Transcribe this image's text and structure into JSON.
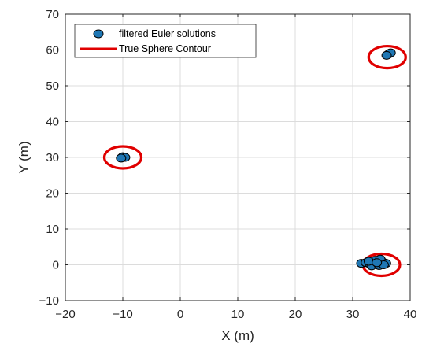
{
  "chart_data": {
    "type": "scatter",
    "xlabel": "X (m)",
    "ylabel": "Y (m)",
    "xlim": [
      -20,
      40
    ],
    "ylim": [
      -10,
      70
    ],
    "xticks": [
      -20,
      -10,
      0,
      10,
      20,
      30,
      40
    ],
    "yticks": [
      -10,
      0,
      10,
      20,
      30,
      40,
      50,
      60,
      70
    ],
    "grid": true,
    "legend_position": "top-left",
    "series": [
      {
        "name": "filtered Euler solutions",
        "kind": "points",
        "color": "#1f77b4",
        "edge_color": "#000000",
        "points": [
          {
            "x": -10.0,
            "y": 30.2
          },
          {
            "x": -9.6,
            "y": 30.0
          },
          {
            "x": -10.3,
            "y": 29.8
          },
          {
            "x": 36.2,
            "y": 58.8
          },
          {
            "x": 36.6,
            "y": 59.2
          },
          {
            "x": 35.9,
            "y": 58.5
          },
          {
            "x": 31.5,
            "y": 0.4
          },
          {
            "x": 32.3,
            "y": 0.6
          },
          {
            "x": 33.0,
            "y": 0.2
          },
          {
            "x": 33.8,
            "y": 0.9
          },
          {
            "x": 34.5,
            "y": 0.3
          },
          {
            "x": 35.2,
            "y": 0.8
          },
          {
            "x": 35.8,
            "y": 0.4
          },
          {
            "x": 34.0,
            "y": 1.3
          },
          {
            "x": 34.8,
            "y": 1.6
          },
          {
            "x": 33.3,
            "y": -0.3
          },
          {
            "x": 34.6,
            "y": -0.2
          },
          {
            "x": 35.4,
            "y": 0.0
          },
          {
            "x": 32.8,
            "y": 1.0
          },
          {
            "x": 34.2,
            "y": 0.6
          }
        ]
      },
      {
        "name": "True Sphere Contour",
        "kind": "circles",
        "color": "#e00000",
        "circles": [
          {
            "x": -10,
            "y": 30,
            "r": 2.8
          },
          {
            "x": 36,
            "y": 58,
            "r": 2.8
          },
          {
            "x": 35,
            "y": 0,
            "r": 2.8
          }
        ]
      }
    ]
  }
}
